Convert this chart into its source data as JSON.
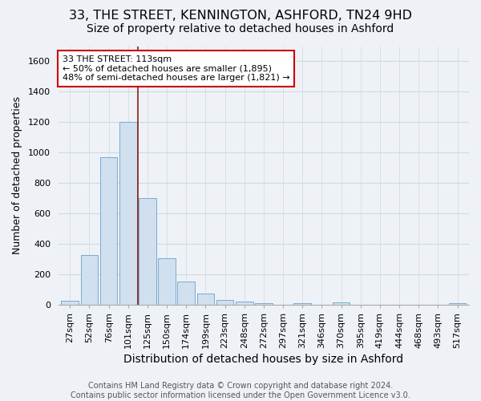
{
  "title": "33, THE STREET, KENNINGTON, ASHFORD, TN24 9HD",
  "subtitle": "Size of property relative to detached houses in Ashford",
  "xlabel": "Distribution of detached houses by size in Ashford",
  "ylabel": "Number of detached properties",
  "footer_line1": "Contains HM Land Registry data © Crown copyright and database right 2024.",
  "footer_line2": "Contains public sector information licensed under the Open Government Licence v3.0.",
  "bar_labels": [
    "27sqm",
    "52sqm",
    "76sqm",
    "101sqm",
    "125sqm",
    "150sqm",
    "174sqm",
    "199sqm",
    "223sqm",
    "248sqm",
    "272sqm",
    "297sqm",
    "321sqm",
    "346sqm",
    "370sqm",
    "395sqm",
    "419sqm",
    "444sqm",
    "468sqm",
    "493sqm",
    "517sqm"
  ],
  "bar_values": [
    25,
    325,
    970,
    1200,
    700,
    305,
    155,
    75,
    30,
    20,
    12,
    0,
    12,
    0,
    15,
    0,
    0,
    0,
    0,
    0,
    12
  ],
  "bar_color": "#d0e0ef",
  "bar_edge_color": "#7baacf",
  "vline_x": 3.5,
  "vline_color": "#8b1a1a",
  "annotation_line1": "33 THE STREET: 113sqm",
  "annotation_line2": "← 50% of detached houses are smaller (1,895)",
  "annotation_line3": "48% of semi-detached houses are larger (1,821) →",
  "annotation_box_color": "white",
  "annotation_box_edge": "#cc0000",
  "ylim": [
    0,
    1700
  ],
  "yticks": [
    0,
    200,
    400,
    600,
    800,
    1000,
    1200,
    1400,
    1600
  ],
  "grid_color": "#d0d8e0",
  "bg_color": "#eef2f7",
  "title_fontsize": 11.5,
  "subtitle_fontsize": 10,
  "xlabel_fontsize": 10,
  "ylabel_fontsize": 9,
  "tick_fontsize": 8,
  "footer_fontsize": 7,
  "annot_fontsize": 8
}
